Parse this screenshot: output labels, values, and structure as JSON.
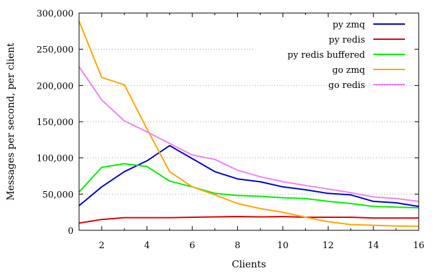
{
  "chart_data": {
    "type": "line",
    "xlabel": "Clients",
    "ylabel": "Messages per second, per client",
    "xlim": [
      1,
      16
    ],
    "ylim": [
      0,
      300000
    ],
    "x_ticks": [
      2,
      4,
      6,
      8,
      10,
      12,
      14,
      16
    ],
    "y_ticks": [
      0,
      50000,
      100000,
      150000,
      200000,
      250000,
      300000
    ],
    "y_tick_labels": [
      "0",
      "50,000",
      "100,000",
      "150,000",
      "200,000",
      "250,000",
      "300,000"
    ],
    "grid": "horizontal dotted",
    "legend_position": "top-right",
    "x": [
      1,
      2,
      3,
      4,
      5,
      6,
      7,
      8,
      9,
      10,
      11,
      12,
      13,
      14,
      15,
      16
    ],
    "series": [
      {
        "name": "py zmq",
        "color": "#0000cc",
        "values": [
          34000,
          60000,
          81000,
          96000,
          117000,
          99000,
          81000,
          71000,
          67000,
          60000,
          56000,
          51000,
          49000,
          40000,
          38000,
          33000
        ]
      },
      {
        "name": "py redis",
        "color": "#dd0000",
        "values": [
          10000,
          15000,
          17500,
          17500,
          17500,
          18000,
          18500,
          19000,
          18500,
          19000,
          18000,
          18000,
          18000,
          17000,
          17000,
          17000
        ]
      },
      {
        "name": "py redis buffered",
        "color": "#00ee00",
        "values": [
          53000,
          87000,
          92000,
          88000,
          68000,
          60000,
          51000,
          48000,
          47000,
          45000,
          44000,
          40000,
          37000,
          33000,
          32000,
          31000
        ]
      },
      {
        "name": "go zmq",
        "color": "#ffa500",
        "values": [
          289000,
          211000,
          201000,
          140000,
          81000,
          60000,
          49000,
          37000,
          30000,
          25000,
          18000,
          12000,
          8000,
          7000,
          6000,
          5500
        ]
      },
      {
        "name": "go redis",
        "color": "#ee82ee",
        "values": [
          226000,
          180000,
          151000,
          136000,
          120000,
          104000,
          98000,
          83000,
          74000,
          67000,
          62000,
          57000,
          52000,
          46000,
          44000,
          40000
        ]
      }
    ]
  }
}
